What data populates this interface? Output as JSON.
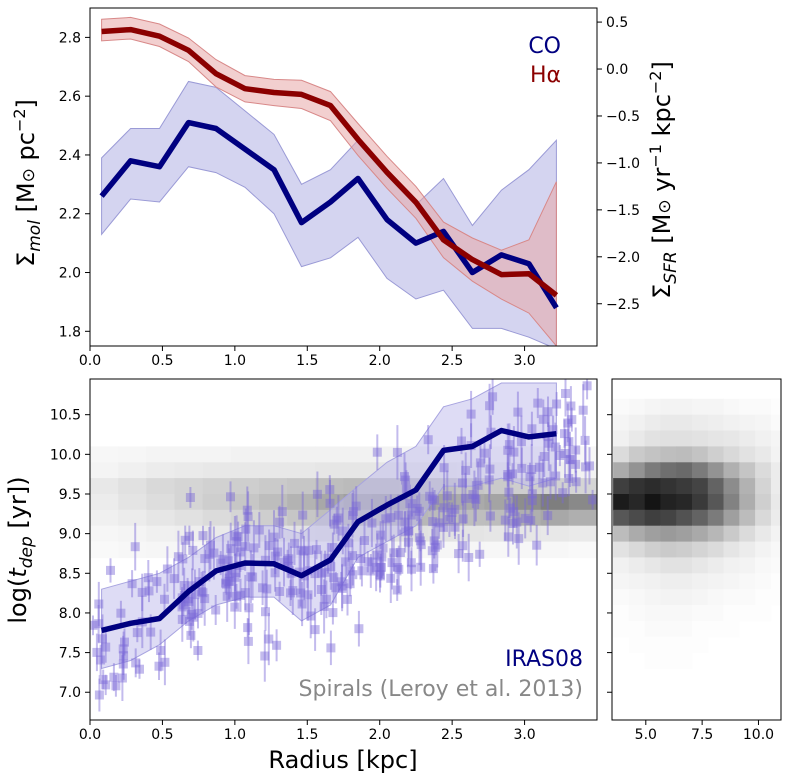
{
  "figure": {
    "top_ylabel_left": "Σmol [M⊙ pc⁻²]",
    "top_ylabel_right": "ΣSFR [M⊙ yr⁻¹ kpc⁻²]",
    "bottom_ylabel": "log(tdep [yr])",
    "bottom_xlabel": "Radius [kpc]",
    "legend_co": "CO",
    "legend_ha": "Hα",
    "legend_iras": "IRAS08",
    "legend_spirals": "Spirals (Leroy et al. 2013)"
  },
  "colors": {
    "co": "#000080",
    "co_band": "#b8b8e6",
    "ha": "#8b0000",
    "ha_band": "#e8a8a8",
    "iras": "#000080",
    "iras_points": "#7b68d6",
    "spirals": "#888888"
  },
  "chart_data": [
    {
      "type": "line",
      "title": "",
      "xlabel": "",
      "ylabel": "Σmol [M⊙ pc⁻²]",
      "ylabel_right": "ΣSFR [M⊙ yr⁻¹ kpc⁻²]",
      "xlim": [
        0,
        3.5
      ],
      "ylim": [
        1.75,
        2.9
      ],
      "ylim_right": [
        -2.95,
        0.65
      ],
      "xticks": [
        0.0,
        0.5,
        1.0,
        1.5,
        2.0,
        2.5,
        3.0
      ],
      "yticks": [
        1.8,
        2.0,
        2.2,
        2.4,
        2.6,
        2.8
      ],
      "yticks_right": [
        -2.5,
        -2.0,
        -1.5,
        -1.0,
        -0.5,
        0.0,
        0.5
      ],
      "series": [
        {
          "name": "CO",
          "axis": "left",
          "x": [
            0.08,
            0.28,
            0.48,
            0.68,
            0.87,
            1.07,
            1.27,
            1.46,
            1.66,
            1.85,
            2.05,
            2.25,
            2.44,
            2.64,
            2.84,
            3.03,
            3.22
          ],
          "values": [
            2.26,
            2.38,
            2.36,
            2.51,
            2.49,
            2.42,
            2.35,
            2.17,
            2.24,
            2.32,
            2.18,
            2.1,
            2.14,
            2.0,
            2.06,
            2.03,
            1.88
          ],
          "lower": [
            2.13,
            2.25,
            2.24,
            2.36,
            2.34,
            2.29,
            2.2,
            2.02,
            2.05,
            2.12,
            1.98,
            1.91,
            1.94,
            1.81,
            1.81,
            1.78,
            1.74
          ],
          "upper": [
            2.39,
            2.49,
            2.49,
            2.65,
            2.63,
            2.55,
            2.47,
            2.3,
            2.35,
            2.45,
            2.33,
            2.23,
            2.32,
            2.16,
            2.28,
            2.35,
            2.45
          ]
        },
        {
          "name": "Hα",
          "axis": "right",
          "x": [
            0.08,
            0.28,
            0.48,
            0.68,
            0.87,
            1.07,
            1.27,
            1.46,
            1.66,
            1.85,
            2.05,
            2.25,
            2.44,
            2.64,
            2.84,
            3.03,
            3.22
          ],
          "values": [
            0.4,
            0.42,
            0.35,
            0.2,
            -0.05,
            -0.21,
            -0.25,
            -0.27,
            -0.39,
            -0.75,
            -1.1,
            -1.42,
            -1.82,
            -2.03,
            -2.19,
            -2.18,
            -2.41
          ],
          "lower": [
            0.3,
            0.32,
            0.24,
            0.08,
            -0.19,
            -0.35,
            -0.39,
            -0.42,
            -0.55,
            -0.92,
            -1.27,
            -1.59,
            -2.01,
            -2.26,
            -2.45,
            -2.6,
            -2.95
          ],
          "upper": [
            0.53,
            0.55,
            0.48,
            0.33,
            0.1,
            -0.07,
            -0.11,
            -0.12,
            -0.24,
            -0.58,
            -0.93,
            -1.25,
            -1.63,
            -1.8,
            -1.93,
            -1.82,
            -1.2
          ]
        }
      ]
    },
    {
      "type": "scatter",
      "title": "",
      "xlabel": "Radius [kpc]",
      "ylabel": "log(tdep [yr])",
      "xlim": [
        0,
        3.5
      ],
      "ylim": [
        6.65,
        10.95
      ],
      "xticks": [
        0.0,
        0.5,
        1.0,
        1.5,
        2.0,
        2.5,
        3.0
      ],
      "yticks": [
        7.0,
        7.5,
        8.0,
        8.5,
        9.0,
        9.5,
        10.0,
        10.5
      ],
      "series": [
        {
          "name": "IRAS08",
          "x": [
            0.08,
            0.28,
            0.48,
            0.68,
            0.87,
            1.07,
            1.27,
            1.46,
            1.66,
            1.85,
            2.05,
            2.25,
            2.44,
            2.64,
            2.84,
            3.03,
            3.22
          ],
          "values": [
            7.78,
            7.87,
            7.93,
            8.27,
            8.53,
            8.63,
            8.62,
            8.47,
            8.67,
            9.15,
            9.36,
            9.55,
            10.05,
            10.1,
            10.3,
            10.22,
            10.26
          ],
          "lower": [
            7.3,
            7.4,
            7.6,
            7.9,
            8.1,
            8.2,
            8.2,
            7.9,
            8.1,
            8.7,
            8.9,
            9.1,
            9.6,
            9.6,
            9.7,
            9.6,
            9.7
          ],
          "upper": [
            8.3,
            8.4,
            8.5,
            8.7,
            8.95,
            9.1,
            9.1,
            9.0,
            9.3,
            9.6,
            9.9,
            10.1,
            10.6,
            10.7,
            10.9,
            10.9,
            10.9
          ]
        }
      ],
      "scatter_trend_a": 7.4,
      "scatter_trend_b": 0.85,
      "scatter_count": 320,
      "scatter_spread": 0.42,
      "scatter_err_min": 0.12,
      "scatter_err_max": 0.35,
      "spirals_density": [
        [
          0.04,
          0.05,
          0.06,
          0.06,
          0.06,
          0.07,
          0.07,
          0.07,
          0.07,
          0.07,
          0.07,
          0.06,
          0.06,
          0.06,
          0.05,
          0.05,
          0.05,
          0.04
        ],
        [
          0.06,
          0.08,
          0.1,
          0.11,
          0.12,
          0.12,
          0.12,
          0.12,
          0.13,
          0.13,
          0.13,
          0.12,
          0.12,
          0.11,
          0.1,
          0.09,
          0.08,
          0.07
        ],
        [
          0.12,
          0.16,
          0.2,
          0.22,
          0.24,
          0.26,
          0.28,
          0.3,
          0.34,
          0.36,
          0.36,
          0.35,
          0.33,
          0.3,
          0.28,
          0.26,
          0.24,
          0.22
        ],
        [
          0.1,
          0.14,
          0.18,
          0.22,
          0.26,
          0.3,
          0.35,
          0.4,
          0.46,
          0.5,
          0.52,
          0.5,
          0.48,
          0.45,
          0.48,
          0.6,
          0.68,
          0.62
        ],
        [
          0.08,
          0.1,
          0.13,
          0.16,
          0.19,
          0.22,
          0.26,
          0.3,
          0.34,
          0.38,
          0.4,
          0.38,
          0.36,
          0.34,
          0.35,
          0.42,
          0.46,
          0.42
        ],
        [
          0.05,
          0.06,
          0.08,
          0.09,
          0.11,
          0.12,
          0.14,
          0.15,
          0.16,
          0.17,
          0.17,
          0.16,
          0.15,
          0.14,
          0.13,
          0.13,
          0.12,
          0.11
        ],
        [
          0.03,
          0.04,
          0.05,
          0.05,
          0.06,
          0.06,
          0.06,
          0.06,
          0.06,
          0.06,
          0.06,
          0.05,
          0.05,
          0.05,
          0.04,
          0.04,
          0.04,
          0.03
        ]
      ],
      "spirals_density_ymin": 8.7,
      "spirals_density_ymax": 10.1
    },
    {
      "type": "heatmap",
      "title": "",
      "xlabel": "",
      "ylabel": "",
      "xlim": [
        3.5,
        11.0
      ],
      "ylim": [
        6.65,
        10.95
      ],
      "xticks": [
        5.0,
        7.5,
        10.0
      ],
      "rows_y": [
        10.6,
        10.4,
        10.2,
        10.0,
        9.8,
        9.6,
        9.4,
        9.2,
        9.0,
        8.8,
        8.6,
        8.4,
        8.2,
        8.0,
        7.8,
        7.6,
        7.4
      ],
      "cols_x": [
        3.9,
        4.6,
        5.3,
        6.0,
        6.7,
        7.4,
        8.1,
        8.8,
        9.5,
        10.2,
        10.9
      ],
      "density": [
        [
          0.02,
          0.03,
          0.04,
          0.05,
          0.05,
          0.04,
          0.04,
          0.03,
          0.02,
          0.02,
          0.01
        ],
        [
          0.04,
          0.06,
          0.08,
          0.09,
          0.09,
          0.08,
          0.07,
          0.06,
          0.05,
          0.04,
          0.02
        ],
        [
          0.06,
          0.09,
          0.12,
          0.13,
          0.13,
          0.12,
          0.11,
          0.1,
          0.08,
          0.06,
          0.04
        ],
        [
          0.15,
          0.22,
          0.25,
          0.27,
          0.28,
          0.25,
          0.2,
          0.16,
          0.12,
          0.09,
          0.05
        ],
        [
          0.35,
          0.45,
          0.55,
          0.6,
          0.62,
          0.55,
          0.45,
          0.33,
          0.24,
          0.15,
          0.08
        ],
        [
          0.8,
          0.85,
          0.88,
          0.85,
          0.82,
          0.78,
          0.65,
          0.48,
          0.32,
          0.18,
          0.08
        ],
        [
          0.95,
          0.9,
          0.98,
          0.92,
          0.9,
          0.82,
          0.7,
          0.52,
          0.34,
          0.2,
          0.09
        ],
        [
          0.7,
          0.75,
          0.8,
          0.78,
          0.72,
          0.65,
          0.55,
          0.4,
          0.28,
          0.16,
          0.08
        ],
        [
          0.28,
          0.35,
          0.4,
          0.42,
          0.4,
          0.36,
          0.3,
          0.22,
          0.15,
          0.09,
          0.05
        ],
        [
          0.12,
          0.16,
          0.2,
          0.22,
          0.21,
          0.18,
          0.15,
          0.11,
          0.08,
          0.05,
          0.03
        ],
        [
          0.06,
          0.08,
          0.1,
          0.12,
          0.12,
          0.1,
          0.08,
          0.06,
          0.05,
          0.03,
          0.02
        ],
        [
          0.04,
          0.05,
          0.06,
          0.07,
          0.07,
          0.06,
          0.05,
          0.04,
          0.03,
          0.02,
          0.01
        ],
        [
          0.02,
          0.03,
          0.04,
          0.05,
          0.05,
          0.04,
          0.03,
          0.02,
          0.02,
          0.01,
          0.01
        ],
        [
          0.01,
          0.02,
          0.03,
          0.03,
          0.03,
          0.02,
          0.02,
          0.01,
          0.01,
          0.01,
          0.0
        ],
        [
          0.01,
          0.01,
          0.02,
          0.02,
          0.02,
          0.01,
          0.01,
          0.01,
          0.0,
          0.0,
          0.0
        ],
        [
          0.0,
          0.01,
          0.01,
          0.01,
          0.01,
          0.01,
          0.0,
          0.0,
          0.0,
          0.0,
          0.0
        ],
        [
          0.0,
          0.0,
          0.01,
          0.01,
          0.01,
          0.0,
          0.0,
          0.0,
          0.0,
          0.0,
          0.0
        ]
      ]
    }
  ]
}
